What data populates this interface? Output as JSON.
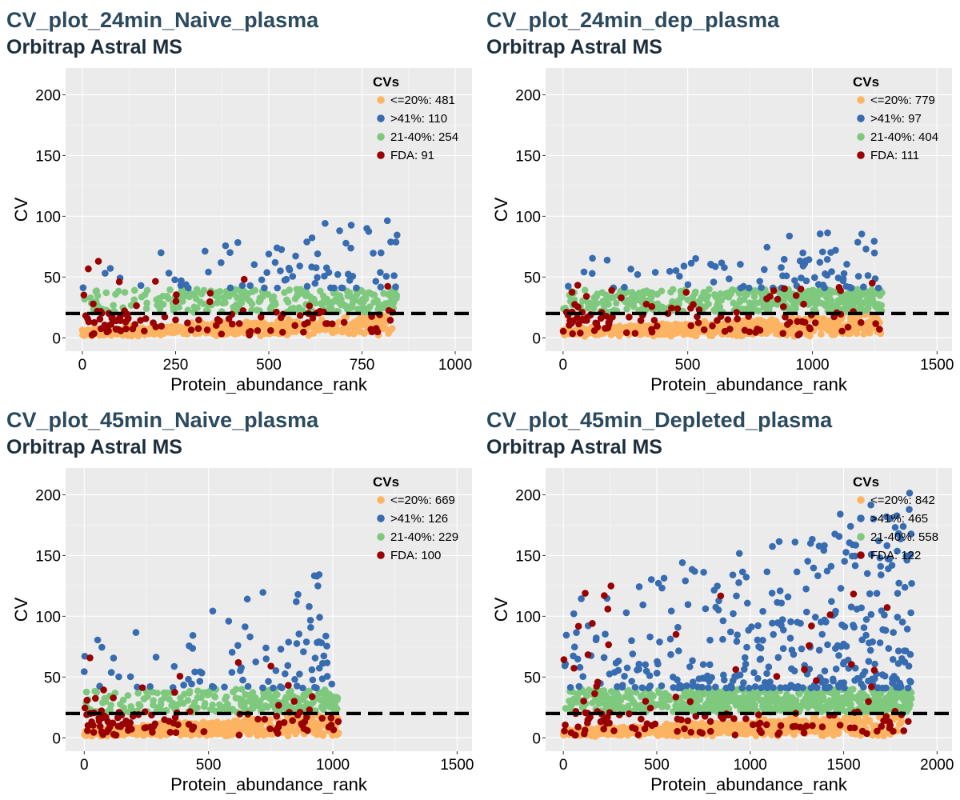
{
  "chart_data": [
    {
      "type": "scatter",
      "title": "CV_plot_24min_Naive_plasma",
      "subtitle": "Orbitrap Astral MS",
      "xlabel": "Protein_abundance_rank",
      "ylabel": "CV",
      "xlim": [
        -45,
        1045
      ],
      "ylim": [
        -11,
        222
      ],
      "xticks": [
        0,
        250,
        500,
        750,
        1000
      ],
      "yticks": [
        0,
        50,
        100,
        150,
        200
      ],
      "threshold": 20,
      "n": 845,
      "grid": true,
      "legend_position": "top-right",
      "legend_title": "CVs",
      "series": [
        {
          "name": "<=20%: 481",
          "color": "#fdb462",
          "count": 481,
          "cv_range": [
            1,
            20
          ]
        },
        {
          "name": ">41%: 110",
          "color": "#386cb0",
          "count": 110,
          "cv_range": [
            41,
            104
          ]
        },
        {
          "name": "21-40%: 254",
          "color": "#7fc97f",
          "count": 254,
          "cv_range": [
            21,
            40
          ]
        },
        {
          "name": "FDA: 91",
          "color": "#990000",
          "count": 91,
          "cv_range": [
            2,
            63
          ]
        }
      ]
    },
    {
      "type": "scatter",
      "title": "CV_plot_24min_dep_plasma",
      "subtitle": "Orbitrap Astral MS",
      "xlabel": "Protein_abundance_rank",
      "ylabel": "CV",
      "xlim": [
        -70,
        1560
      ],
      "ylim": [
        -11,
        222
      ],
      "xticks": [
        0,
        500,
        1000,
        1500
      ],
      "yticks": [
        0,
        50,
        100,
        150,
        200
      ],
      "threshold": 20,
      "n": 1280,
      "grid": true,
      "legend_position": "top-right",
      "legend_title": "CVs",
      "series": [
        {
          "name": "<=20%: 779",
          "color": "#fdb462",
          "count": 779,
          "cv_range": [
            1,
            20
          ]
        },
        {
          "name": ">41%: 97",
          "color": "#386cb0",
          "count": 97,
          "cv_range": [
            41,
            92
          ]
        },
        {
          "name": "21-40%: 404",
          "color": "#7fc97f",
          "count": 404,
          "cv_range": [
            21,
            40
          ]
        },
        {
          "name": "FDA: 111",
          "color": "#990000",
          "count": 111,
          "cv_range": [
            2,
            46
          ]
        }
      ]
    },
    {
      "type": "scatter",
      "title": "CV_plot_45min_Naive_plasma",
      "subtitle": "Orbitrap Astral MS",
      "xlabel": "Protein_abundance_rank",
      "ylabel": "CV",
      "xlim": [
        -75,
        1560
      ],
      "ylim": [
        -11,
        222
      ],
      "xticks": [
        0,
        500,
        1000,
        1500
      ],
      "yticks": [
        0,
        50,
        100,
        150,
        200
      ],
      "threshold": 20,
      "n": 1024,
      "grid": true,
      "legend_position": "top-right",
      "legend_title": "CVs",
      "series": [
        {
          "name": "<=20%: 669",
          "color": "#fdb462",
          "count": 669,
          "cv_range": [
            1,
            20
          ]
        },
        {
          "name": ">41%: 126",
          "color": "#386cb0",
          "count": 126,
          "cv_range": [
            41,
            141
          ]
        },
        {
          "name": "21-40%: 229",
          "color": "#7fc97f",
          "count": 229,
          "cv_range": [
            21,
            40
          ]
        },
        {
          "name": "FDA: 100",
          "color": "#990000",
          "count": 100,
          "cv_range": [
            2,
            68
          ]
        }
      ]
    },
    {
      "type": "scatter",
      "title": "CV_plot_45min_Depleted_plasma",
      "subtitle": "Orbitrap Astral MS",
      "xlabel": "Protein_abundance_rank",
      "ylabel": "CV",
      "xlim": [
        -95,
        2080
      ],
      "ylim": [
        -11,
        222
      ],
      "xticks": [
        0,
        500,
        1000,
        1500,
        2000
      ],
      "yticks": [
        0,
        50,
        100,
        150,
        200
      ],
      "threshold": 20,
      "n": 1865,
      "grid": true,
      "legend_position": "top-right",
      "legend_title": "CVs",
      "series": [
        {
          "name": "<=20%: 842",
          "color": "#fdb462",
          "count": 842,
          "cv_range": [
            1,
            20
          ]
        },
        {
          "name": ">41%: 465",
          "color": "#386cb0",
          "count": 465,
          "cv_range": [
            41,
            203
          ]
        },
        {
          "name": "21-40%: 558",
          "color": "#7fc97f",
          "count": 558,
          "cv_range": [
            21,
            40
          ]
        },
        {
          "name": "FDA: 122",
          "color": "#990000",
          "count": 122,
          "cv_range": [
            2,
            129
          ]
        }
      ]
    }
  ]
}
